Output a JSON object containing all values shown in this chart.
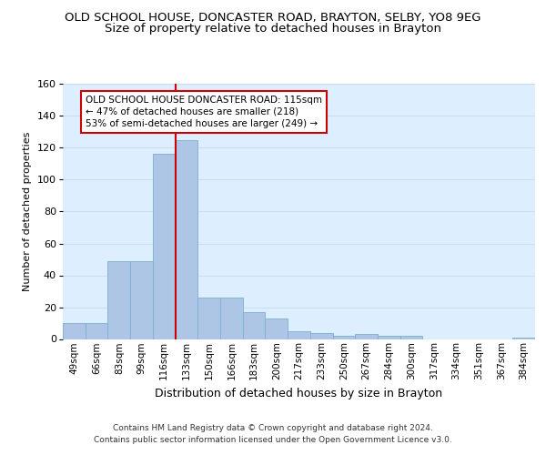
{
  "title": "OLD SCHOOL HOUSE, DONCASTER ROAD, BRAYTON, SELBY, YO8 9EG",
  "subtitle": "Size of property relative to detached houses in Brayton",
  "xlabel": "Distribution of detached houses by size in Brayton",
  "ylabel": "Number of detached properties",
  "categories": [
    "49sqm",
    "66sqm",
    "83sqm",
    "99sqm",
    "116sqm",
    "133sqm",
    "150sqm",
    "166sqm",
    "183sqm",
    "200sqm",
    "217sqm",
    "233sqm",
    "250sqm",
    "267sqm",
    "284sqm",
    "300sqm",
    "317sqm",
    "334sqm",
    "351sqm",
    "367sqm",
    "384sqm"
  ],
  "values": [
    10,
    10,
    49,
    49,
    116,
    125,
    26,
    26,
    17,
    13,
    5,
    4,
    2,
    3,
    2,
    2,
    0,
    0,
    0,
    0,
    1
  ],
  "bar_color": "#adc6e5",
  "bar_edge_color": "#7bafd4",
  "red_line_x": 4.5,
  "annotation_text": "OLD SCHOOL HOUSE DONCASTER ROAD: 115sqm\n← 47% of detached houses are smaller (218)\n53% of semi-detached houses are larger (249) →",
  "annotation_box_color": "#ffffff",
  "annotation_box_edge": "#cc0000",
  "red_line_color": "#cc0000",
  "grid_color": "#c8dff0",
  "bg_color": "#ddeeff",
  "figure_bg": "#ffffff",
  "footer": "Contains HM Land Registry data © Crown copyright and database right 2024.\nContains public sector information licensed under the Open Government Licence v3.0.",
  "ylim": [
    0,
    160
  ],
  "title_fontsize": 9.5,
  "subtitle_fontsize": 9.5,
  "xlabel_fontsize": 9,
  "ylabel_fontsize": 8,
  "tick_fontsize": 7.5,
  "annotation_fontsize": 7.5,
  "footer_fontsize": 6.5,
  "yticks": [
    0,
    20,
    40,
    60,
    80,
    100,
    120,
    140,
    160
  ]
}
